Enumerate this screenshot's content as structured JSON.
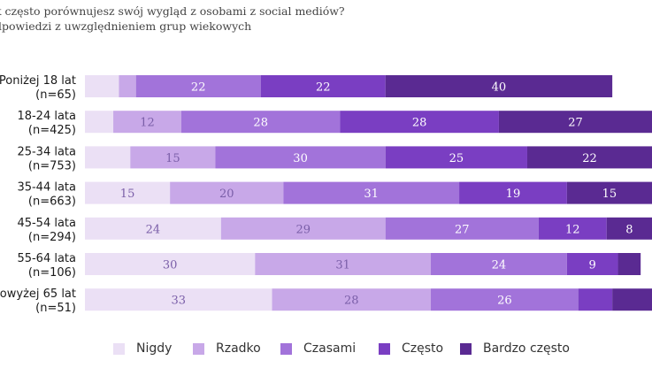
{
  "title": "k często porównujesz swój wygląd z osobami z social mediów?",
  "subtitle": "dpowiedzi z uwzględnieniem grup wiekowych",
  "colors": {
    "nigdy": "#ebe0f5",
    "rzadko": "#c8a8e8",
    "czasami": "#a273da",
    "czesto": "#7a3ec2",
    "bardzo_czesto": "#5a2a92"
  },
  "chart_data": {
    "type": "bar",
    "orientation": "horizontal-stacked",
    "title": "k często porównujesz swój wygląd z osobami z social mediów?",
    "subtitle": "dpowiedzi z uwzględnieniem grup wiekowych",
    "categories": [
      [
        "Poniżej 18 lat",
        "(n=65)"
      ],
      [
        "18-24 lata",
        "(n=425)"
      ],
      [
        "25-34 lata",
        "(n=753)"
      ],
      [
        "35-44 lata",
        "(n=663)"
      ],
      [
        "45-54 lata",
        "(n=294)"
      ],
      [
        "55-64 lata",
        "(n=106)"
      ],
      [
        "owyżej 65 lat",
        "(n=51)"
      ]
    ],
    "series": [
      {
        "name": "Nigdy",
        "values": [
          6,
          5,
          8,
          15,
          24,
          30,
          33
        ]
      },
      {
        "name": "Rzadko",
        "values": [
          3,
          12,
          15,
          20,
          29,
          31,
          28
        ]
      },
      {
        "name": "Czasami",
        "values": [
          22,
          28,
          30,
          31,
          27,
          24,
          26
        ]
      },
      {
        "name": "Często",
        "values": [
          22,
          28,
          25,
          19,
          12,
          9,
          6
        ]
      },
      {
        "name": "Bardzo często",
        "values": [
          40,
          27,
          22,
          15,
          8,
          4,
          7
        ]
      }
    ],
    "data_labels": [
      [
        "",
        "",
        "22",
        "22",
        "40"
      ],
      [
        "",
        "12",
        "28",
        "28",
        "27"
      ],
      [
        "",
        "15",
        "30",
        "25",
        "22"
      ],
      [
        "15",
        "20",
        "31",
        "19",
        "15"
      ],
      [
        "24",
        "29",
        "27",
        "12",
        "8"
      ],
      [
        "30",
        "31",
        "24",
        "9",
        ""
      ],
      [
        "33",
        "28",
        "26",
        "",
        ""
      ]
    ],
    "xlim": [
      0,
      100
    ],
    "legend_position": "bottom",
    "grid": false
  }
}
